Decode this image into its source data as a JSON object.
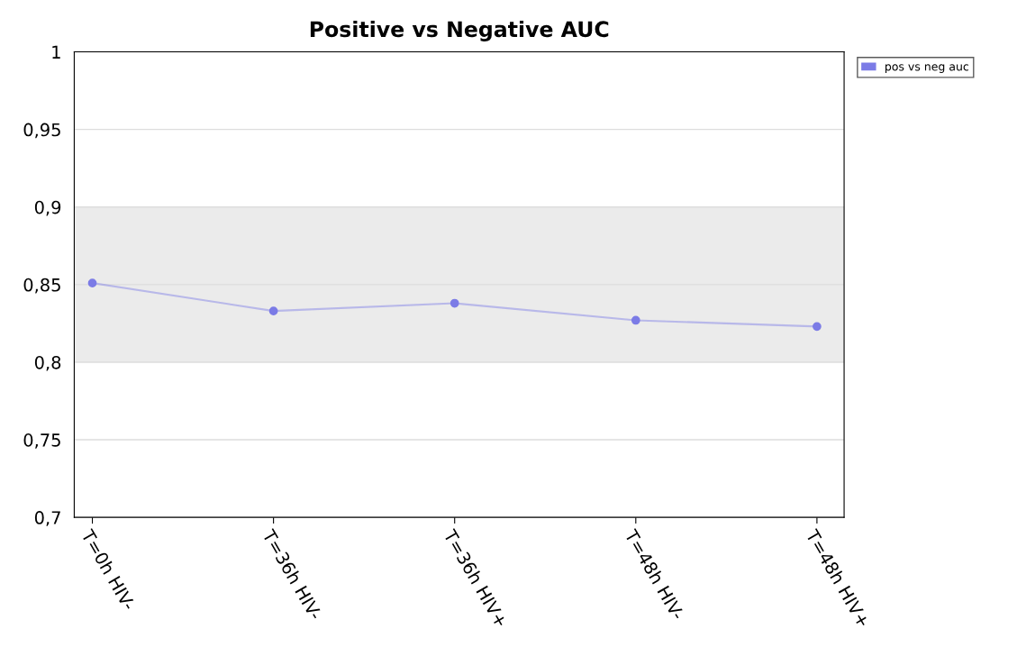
{
  "chart_data": {
    "type": "line",
    "title": "Positive vs Negative AUC",
    "categories": [
      "T=0h HIV-",
      "T=36h HIV-",
      "T=36h HIV+",
      "T=48h HIV-",
      "T=48h HIV+"
    ],
    "series": [
      {
        "name": "pos vs neg auc",
        "color": "#7b7be6",
        "values": [
          0.851,
          0.833,
          0.838,
          0.827,
          0.823
        ]
      }
    ],
    "ylim": [
      0.7,
      1
    ],
    "yticks": [
      {
        "value": 0.7,
        "label": "0,7"
      },
      {
        "value": 0.75,
        "label": "0,75"
      },
      {
        "value": 0.8,
        "label": "0,8"
      },
      {
        "value": 0.85,
        "label": "0,85"
      },
      {
        "value": 0.9,
        "label": "0,9"
      },
      {
        "value": 0.95,
        "label": "0,95"
      },
      1
    ],
    "bands": [
      {
        "axis": "y",
        "from": 0.8,
        "to": 0.9,
        "color": "#ebebeb"
      }
    ],
    "grid": "y",
    "legend": "top right",
    "marker": "circle",
    "line_style": "solid"
  }
}
